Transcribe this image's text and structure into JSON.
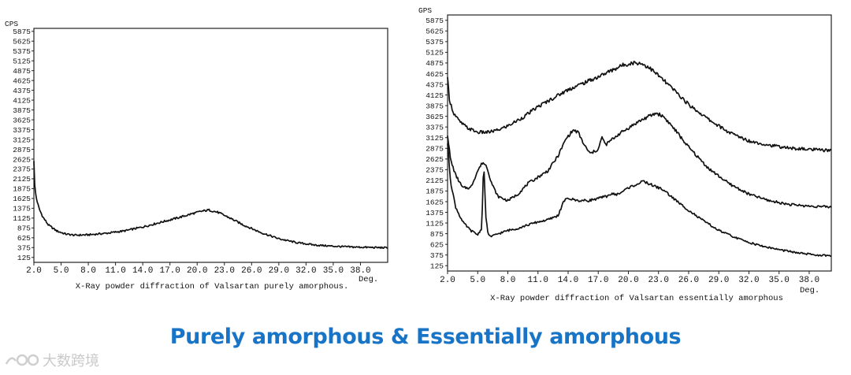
{
  "chart_data": [
    {
      "type": "line",
      "ylabel": "CPS",
      "xlabel_unit": "Deg.",
      "caption": "X-Ray powder diffraction of Valsartan purely amorphous.",
      "xlim": [
        2.0,
        41.0
      ],
      "ylim": [
        0,
        5950
      ],
      "yticks": [
        "5875",
        "5625",
        "5375",
        "5125",
        "4875",
        "4625",
        "4375",
        "4125",
        "3875",
        "3625",
        "3375",
        "3125",
        "2875",
        "2625",
        "2375",
        "2125",
        "1875",
        "1625",
        "1375",
        "1125",
        "875",
        "625",
        "375",
        "125"
      ],
      "xticks": [
        "2.0",
        "5.0",
        "8.0",
        "11.0",
        "14.0",
        "17.0",
        "20.0",
        "23.0",
        "26.0",
        "29.0",
        "32.0",
        "35.0",
        "38.0"
      ],
      "series": [
        {
          "x": [
            2.0,
            2.1,
            2.3,
            2.6,
            3.0,
            3.6,
            4.5,
            5.5,
            6.5,
            8.0,
            10.0,
            12.0,
            14.0,
            16.0,
            18.0,
            19.5,
            20.5,
            21.3,
            22.3,
            23.5,
            25.0,
            27.0,
            29.0,
            31.0,
            33.0,
            35.0,
            37.0,
            39.0,
            41.0
          ],
          "y": [
            2600,
            1900,
            1600,
            1350,
            1150,
            950,
            800,
            720,
            690,
            700,
            740,
            800,
            900,
            1020,
            1140,
            1240,
            1300,
            1330,
            1270,
            1140,
            960,
            760,
            600,
            500,
            440,
            410,
            390,
            380,
            370
          ]
        }
      ]
    },
    {
      "type": "line",
      "ylabel": "GPS",
      "xlabel_unit": "Deg.",
      "caption": "X-Ray powder diffraction of Valsartan essentially amorphous",
      "xlim": [
        2.0,
        40.2
      ],
      "ylim": [
        0,
        6000
      ],
      "yticks": [
        "5875",
        "5625",
        "5375",
        "5125",
        "4875",
        "4625",
        "4375",
        "4125",
        "3875",
        "3625",
        "3375",
        "3125",
        "2875",
        "2625",
        "2375",
        "2125",
        "1875",
        "1625",
        "1375",
        "1125",
        "875",
        "625",
        "375",
        "125"
      ],
      "xticks": [
        "2.0",
        "5.0",
        "8.0",
        "11.0",
        "14.0",
        "17.0",
        "20.0",
        "23.0",
        "26.0",
        "29.0",
        "32.0",
        "35.0",
        "38.0"
      ],
      "series": [
        {
          "x": [
            2.0,
            2.2,
            2.6,
            3.2,
            4.0,
            5.0,
            6.0,
            7.0,
            8.0,
            9.5,
            11.0,
            12.5,
            14.0,
            15.5,
            17.0,
            18.5,
            19.5,
            20.5,
            21.2,
            22.0,
            23.0,
            24.5,
            26.0,
            28.0,
            30.0,
            32.0,
            34.0,
            36.0,
            38.0,
            40.2
          ],
          "y": [
            4500,
            4000,
            3700,
            3500,
            3350,
            3250,
            3250,
            3300,
            3400,
            3600,
            3850,
            4050,
            4250,
            4400,
            4550,
            4720,
            4830,
            4880,
            4870,
            4780,
            4580,
            4250,
            3900,
            3550,
            3250,
            3050,
            2950,
            2880,
            2850,
            2820
          ]
        },
        {
          "x": [
            2.0,
            2.3,
            2.8,
            3.5,
            4.3,
            5.0,
            5.5,
            5.9,
            6.4,
            7.0,
            8.0,
            9.0,
            10.0,
            11.0,
            12.0,
            13.0,
            13.8,
            14.5,
            15.0,
            15.6,
            16.2,
            17.0,
            17.4,
            17.7,
            18.2,
            19.0,
            20.0,
            21.0,
            22.0,
            22.8,
            23.5,
            24.5,
            26.0,
            28.0,
            30.0,
            32.0,
            34.0,
            36.0,
            38.0,
            40.2
          ],
          "y": [
            3200,
            2600,
            2250,
            1950,
            1950,
            2350,
            2550,
            2450,
            2050,
            1750,
            1650,
            1800,
            2050,
            2200,
            2350,
            2700,
            3100,
            3300,
            3250,
            2950,
            2750,
            2850,
            3150,
            2950,
            3050,
            3200,
            3350,
            3500,
            3620,
            3700,
            3620,
            3350,
            2900,
            2400,
            2050,
            1800,
            1650,
            1560,
            1520,
            1500
          ]
        },
        {
          "x": [
            2.0,
            2.3,
            2.8,
            3.5,
            4.3,
            5.0,
            5.4,
            5.6,
            5.8,
            6.0,
            6.3,
            7.0,
            8.0,
            9.0,
            10.0,
            11.0,
            12.0,
            13.0,
            13.6,
            14.0,
            15.0,
            16.0,
            17.0,
            17.8,
            18.2,
            19.0,
            20.0,
            21.0,
            21.5,
            22.5,
            23.5,
            25.0,
            27.0,
            29.0,
            31.0,
            33.0,
            35.0,
            37.0,
            38.5,
            40.2
          ],
          "y": [
            3000,
            2100,
            1500,
            1150,
            950,
            850,
            1000,
            2600,
            1300,
            900,
            800,
            870,
            950,
            1000,
            1080,
            1150,
            1200,
            1300,
            1650,
            1700,
            1650,
            1650,
            1700,
            1750,
            1800,
            1800,
            1950,
            2050,
            2100,
            2000,
            1900,
            1600,
            1250,
            950,
            750,
            600,
            500,
            420,
            380,
            350
          ]
        }
      ]
    }
  ],
  "caption_main": "Purely amorphous & Essentially amorphous",
  "watermark": "大数跨境"
}
